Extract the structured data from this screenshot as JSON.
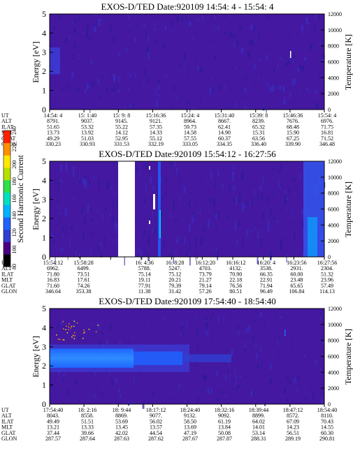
{
  "chart_data": [
    {
      "type": "heatmap",
      "title": "EXOS-D/TED    Date:920109  14:54: 4 - 15:54: 4",
      "ylabel": "Energy [eV]",
      "ylabel_right": "Temperature [K]",
      "ylim": [
        0,
        5
      ],
      "yticks": [
        "0",
        "1",
        "2",
        "3",
        "4",
        "5"
      ],
      "yticks_right": [
        "0",
        "2000",
        "4000",
        "6000",
        "8000",
        "10000",
        "12000"
      ],
      "ephemeris": [
        {
          "label": "UT",
          "values": [
            "14:54: 4",
            "15: 1:40",
            "15: 9: 8",
            "15:16:36",
            "15:24: 4",
            "15:31:40",
            "15:39: 8",
            "15:46:36",
            "15:54: 4"
          ]
        },
        {
          "label": "ALT",
          "values": [
            "8791.",
            "9037.",
            "9145.",
            "9121.",
            "8964.",
            "8667.",
            "8239.",
            "7676.",
            "6976."
          ]
        },
        {
          "label": "ILAT",
          "values": [
            "51.65",
            "53.32",
            "55.22",
            "57.35",
            "59.73",
            "62.41",
            "65.32",
            "68.48",
            "71.75"
          ]
        },
        {
          "label": "MLT",
          "values": [
            "13.73",
            "13.92",
            "14.12",
            "14.33",
            "14.58",
            "14.90",
            "15.31",
            "15.90",
            "16.81"
          ]
        },
        {
          "label": "GLAT",
          "values": [
            "49.29",
            "51.03",
            "52.95",
            "55.12",
            "57.55",
            "60.37",
            "63.56",
            "67.25",
            "71.52"
          ]
        },
        {
          "label": "GLON",
          "values": [
            "330.23",
            "330.93",
            "331.53",
            "332.19",
            "333.05",
            "334.35",
            "336.40",
            "339.90",
            "346.48"
          ]
        }
      ]
    },
    {
      "type": "heatmap",
      "title": "EXOS-D/TED    Date:920109  15:54:12 - 16:27:56",
      "ylabel": "Energy [eV]",
      "ylabel_right": "Temperature [K]",
      "ylim": [
        0,
        5
      ],
      "yticks": [
        "0",
        "1",
        "2",
        "3",
        "4",
        "5"
      ],
      "yticks_right": [
        "0",
        "2000",
        "4000",
        "6000",
        "8000",
        "10000",
        "12000"
      ],
      "ephemeris": [
        {
          "label": "UT",
          "values": [
            "15:54:12",
            "15:58:28",
            "",
            "16: 4:36",
            "16: 8:28",
            "16:12:20",
            "16:16:12",
            "16:20: 4",
            "16:23:56",
            "16:27:56"
          ]
        },
        {
          "label": "ALT",
          "values": [
            "6962.",
            "6499.",
            "",
            "5788.",
            "5247.",
            "4703.",
            "4132.",
            "3538.",
            "2931.",
            "2304."
          ]
        },
        {
          "label": "ILAT",
          "values": [
            "71.80",
            "73.51",
            "",
            "75.14",
            "75.12",
            "73.79",
            "70.90",
            "66.35",
            "60.00",
            "51.32"
          ]
        },
        {
          "label": "MLT",
          "values": [
            "16.83",
            "17.61",
            "",
            "19.11",
            "20.21",
            "21.27",
            "22.18",
            "22.91",
            "23.48",
            "23.96"
          ]
        },
        {
          "label": "GLAT",
          "values": [
            "71.60",
            "74.26",
            "",
            "77.91",
            "79.39",
            "79.14",
            "76.56",
            "71.94",
            "65.65",
            "57.49"
          ]
        },
        {
          "label": "GLON",
          "values": [
            "346.64",
            "353.38",
            "",
            "11.38",
            "31.42",
            "57.26",
            "80.51",
            "96.49",
            "106.84",
            "114.13"
          ]
        }
      ]
    },
    {
      "type": "heatmap",
      "title": "EXOS-D/TED    Date:920109  17:54:40 - 18:54:40",
      "ylabel": "Energy [eV]",
      "ylabel_right": "Temperature [K]",
      "ylim": [
        0,
        5
      ],
      "yticks": [
        "0",
        "1",
        "2",
        "3",
        "4",
        "5"
      ],
      "yticks_right": [
        "0",
        "2000",
        "4000",
        "6000",
        "8000",
        "10000",
        "12000"
      ],
      "ephemeris": [
        {
          "label": "UT",
          "values": [
            "17:54:40",
            "18: 2:16",
            "18: 9:44",
            "18:17:12",
            "18:24:40",
            "18:32:16",
            "18:39:44",
            "18:47:12",
            "18:54:40"
          ]
        },
        {
          "label": "ALT",
          "values": [
            "8043.",
            "8558.",
            "8869.",
            "9077.",
            "9132.",
            "9092.",
            "8899.",
            "8572.",
            "8110."
          ]
        },
        {
          "label": "ILAT",
          "values": [
            "49.49",
            "51.51",
            "53.69",
            "56.02",
            "58.50",
            "61.19",
            "64.02",
            "67.09",
            "70.43"
          ]
        },
        {
          "label": "MLT",
          "values": [
            "13.21",
            "13.33",
            "13.45",
            "13.57",
            "13.69",
            "13.84",
            "14.01",
            "14.23",
            "14.55"
          ]
        },
        {
          "label": "GLAT",
          "values": [
            "37.44",
            "39.66",
            "42.02",
            "44.54",
            "47.19",
            "50.08",
            "53.14",
            "56.51",
            "60.30"
          ]
        },
        {
          "label": "GLON",
          "values": [
            "287.57",
            "287.64",
            "287.63",
            "287.62",
            "287.67",
            "287.87",
            "288.31",
            "289.19",
            "290.81"
          ]
        }
      ]
    }
  ],
  "colorbar": {
    "label": "Second Harmonic Current",
    "ticks": [
      "80",
      "100",
      "120",
      "140",
      "160",
      "180",
      "200",
      "220",
      "240"
    ],
    "colors": [
      "#000000",
      "#4b0082",
      "#2f3fd1",
      "#1f63ff",
      "#00b4ff",
      "#00e0c0",
      "#2ee04a",
      "#b6e000",
      "#ffe800",
      "#ff9000",
      "#ff2000"
    ]
  }
}
